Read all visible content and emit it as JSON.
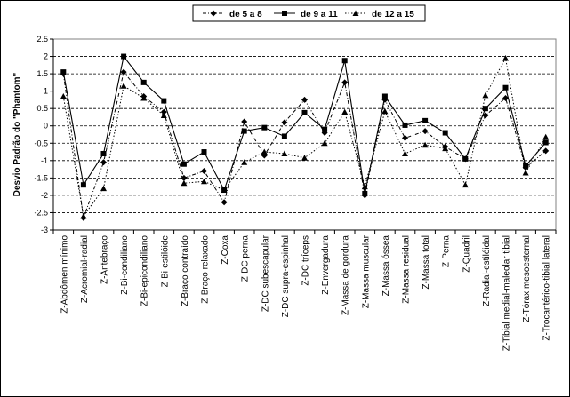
{
  "chart_data": {
    "type": "line",
    "title": "",
    "xlabel": "",
    "ylabel": "Desvio Padrão do \"Phantom\"",
    "ylim": [
      -3,
      2.5
    ],
    "yticks": [
      2.5,
      2,
      1.5,
      1,
      0.5,
      0,
      -0.5,
      -1,
      -1.5,
      -2,
      -2.5,
      -3
    ],
    "ytick_labels": [
      "2.5",
      "2",
      "1.5",
      "1",
      "0.5",
      "0",
      "-0.5",
      "-1",
      "-1.5",
      "-2",
      "-2.5",
      "-3"
    ],
    "grid": true,
    "legend_position": "top",
    "categories": [
      "Z-Abdômen mínimo",
      "Z-Acromial-radial",
      "Z-Antebraço",
      "Z-Bi-condiliano",
      "Z-Bi-epicondiliano",
      "Z-Bi-estilóide",
      "Z-Braço contraído",
      "Z-Braço relaxado",
      "Z-Coxa",
      "Z-DC perna",
      "Z-DC subescapular",
      "Z-DC supra-espinhal",
      "Z-DC tríceps",
      "Z-Envergadura",
      "Z-Massa de gordura",
      "Z-Massa muscular",
      "Z-Massa óssea",
      "Z-Massa residual",
      "Z-Massa total",
      "Z-Perna",
      "Z-Quadril",
      "Z-Radial-estilóidal",
      "Z-Tibial medial-maleolar tibial",
      "Z-Tórax mesoesternal",
      "Z-Trocantérico-tibial lateral"
    ],
    "series": [
      {
        "name": "de 5 a 8",
        "marker": "diamond",
        "line": "dash-dot",
        "values": [
          1.5,
          -2.65,
          -1.05,
          1.55,
          0.85,
          0.4,
          -1.5,
          -1.3,
          -2.2,
          0.12,
          -0.85,
          0.1,
          0.75,
          -0.2,
          1.25,
          -2.0,
          0.75,
          -0.35,
          -0.15,
          -0.6,
          -0.95,
          0.3,
          0.8,
          -1.2,
          -0.72
        ]
      },
      {
        "name": "de 9 a 11",
        "marker": "square",
        "line": "solid",
        "values": [
          1.55,
          -1.7,
          -0.8,
          2.0,
          1.25,
          0.72,
          -1.1,
          -0.75,
          -1.85,
          -0.15,
          -0.05,
          -0.3,
          0.38,
          -0.1,
          1.88,
          -1.95,
          0.85,
          0.02,
          0.15,
          -0.2,
          -0.95,
          0.5,
          1.1,
          -1.15,
          -0.48
        ]
      },
      {
        "name": "de 12 a 15",
        "marker": "triangle",
        "line": "dotted",
        "values": [
          0.85,
          -2.6,
          -1.8,
          1.15,
          0.8,
          0.3,
          -1.65,
          -1.6,
          -1.85,
          -1.05,
          -0.75,
          -0.8,
          -0.92,
          -0.5,
          0.4,
          -1.75,
          0.42,
          -0.8,
          -0.55,
          -0.65,
          -1.7,
          0.88,
          1.95,
          -1.35,
          -0.32
        ]
      }
    ]
  }
}
